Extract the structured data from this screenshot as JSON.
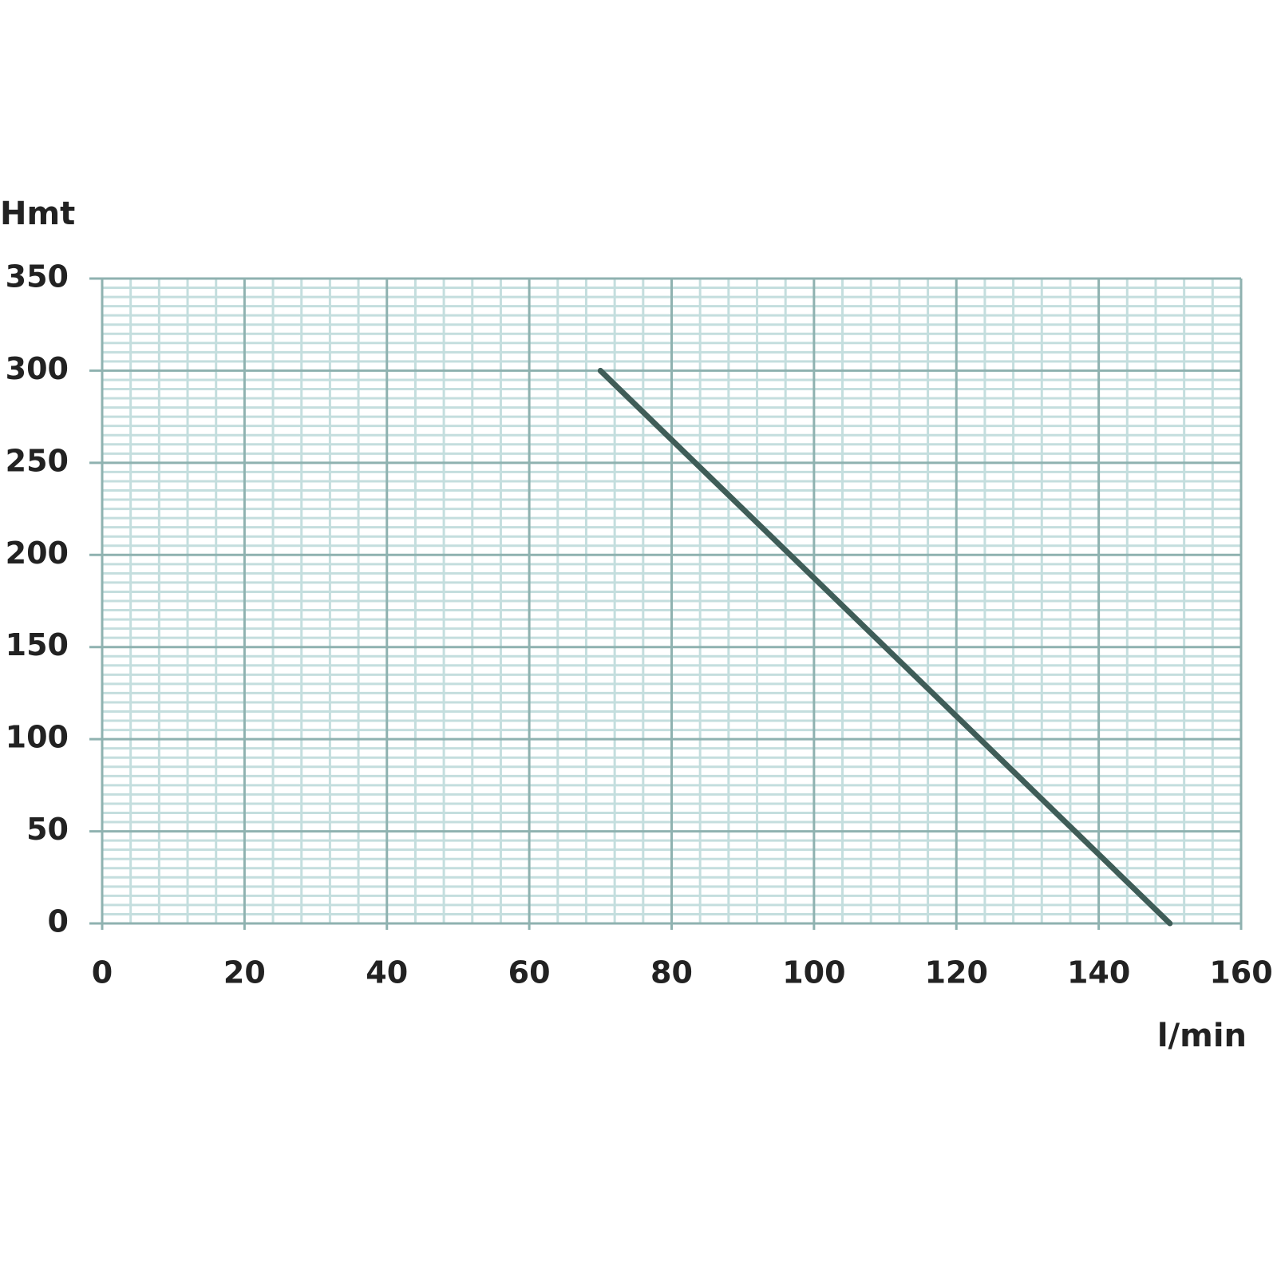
{
  "chart_data": {
    "type": "line",
    "x_label": "l/min",
    "y_label": "Hmt",
    "x": [
      70,
      150
    ],
    "values": [
      300,
      0
    ],
    "color": "#3f5d58",
    "xlim": [
      0,
      160
    ],
    "ylim": [
      0,
      350
    ],
    "xticks": [
      0,
      20,
      40,
      60,
      80,
      100,
      120,
      140,
      160
    ],
    "yticks": [
      0,
      50,
      100,
      150,
      200,
      250,
      300,
      350
    ],
    "grid": true,
    "minor_grid_divisions": [
      5,
      10
    ]
  }
}
